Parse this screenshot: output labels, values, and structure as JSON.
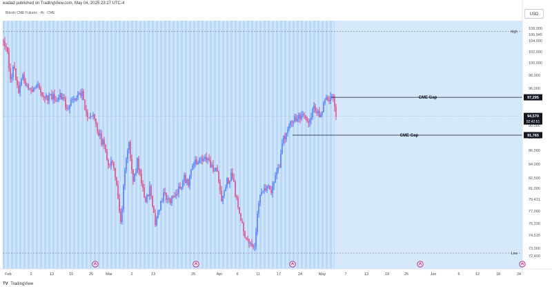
{
  "header": {
    "published_text": "wadad published on TradingView.com, May 04, 2025 23:27 UTC-4",
    "symbol_text": "Bitcoin CME Futures · 4h · CME"
  },
  "currency": "USD",
  "branding": {
    "logo": "TV",
    "name": "TradingView"
  },
  "colors": {
    "up": "#2962ff",
    "down": "#e91e63",
    "background_band": "#bbd8f7",
    "future_area": "#d6e8fb",
    "price_tag_bg": "#131722",
    "line": "#131722",
    "session_marker": "#a1187a"
  },
  "chart_data": {
    "type": "candlestick",
    "timeframe": "4h",
    "y_axis": {
      "ticks": [
        "108,000",
        "106,945",
        "104,000",
        "102,000",
        "100,000",
        "98,000",
        "96,000",
        "94,570",
        "02:42:51",
        "91,765",
        "90,000",
        "88,000",
        "86,000",
        "84,000",
        "82,500",
        "81,000",
        "79,431",
        "77,000",
        "76,330",
        "74,515",
        "73,000",
        "72,400"
      ],
      "ylim": [
        72200,
        108500
      ],
      "high_label": "High",
      "low_label": "Low",
      "high_value": 106945,
      "low_value": 74515
    },
    "x_axis": {
      "ticks": [
        "Feb",
        "2",
        "13",
        "19",
        "25",
        "Mar",
        "2",
        "13",
        "25",
        "Apr",
        "6",
        "11",
        "17",
        "24",
        "May",
        "7",
        "13",
        "19",
        "25",
        "Jun",
        "6",
        "12",
        "18",
        "24"
      ]
    },
    "price_labels": [
      {
        "value": "97,295",
        "price": 97295
      },
      {
        "value": "94,570",
        "price": 94570,
        "countdown": "02:42:51"
      },
      {
        "value": "91,765",
        "price": 91765
      }
    ],
    "annotations": [
      {
        "text": "CME Gap",
        "price": 97295
      },
      {
        "text": "CME Gap",
        "price": 91765
      }
    ],
    "path": [
      [
        0,
        105500
      ],
      [
        3,
        104800
      ],
      [
        6,
        100500
      ],
      [
        9,
        101500
      ],
      [
        12,
        98200
      ],
      [
        15,
        100000
      ],
      [
        20,
        98000
      ],
      [
        26,
        98800
      ],
      [
        30,
        97500
      ],
      [
        36,
        97200
      ],
      [
        42,
        97500
      ],
      [
        47,
        96000
      ],
      [
        52,
        96900
      ],
      [
        58,
        97800
      ],
      [
        61,
        95000
      ],
      [
        67,
        94500
      ],
      [
        70,
        92000
      ],
      [
        74,
        90000
      ],
      [
        77,
        87000
      ],
      [
        80,
        88200
      ],
      [
        83,
        84000
      ],
      [
        86,
        78800
      ],
      [
        89,
        86500
      ],
      [
        92,
        90800
      ],
      [
        95,
        84500
      ],
      [
        98,
        88000
      ],
      [
        101,
        85000
      ],
      [
        104,
        82200
      ],
      [
        107,
        84000
      ],
      [
        111,
        79000
      ],
      [
        114,
        81000
      ],
      [
        117,
        83500
      ],
      [
        122,
        82000
      ],
      [
        128,
        84000
      ],
      [
        132,
        85500
      ],
      [
        135,
        84500
      ],
      [
        138,
        87500
      ],
      [
        143,
        87800
      ],
      [
        147,
        89000
      ],
      [
        152,
        87000
      ],
      [
        156,
        86800
      ],
      [
        159,
        82000
      ],
      [
        162,
        84500
      ],
      [
        166,
        86000
      ],
      [
        168,
        84500
      ],
      [
        171,
        81000
      ],
      [
        174,
        79000
      ],
      [
        177,
        76500
      ],
      [
        180,
        75500
      ],
      [
        183,
        76000
      ],
      [
        186,
        82000
      ],
      [
        189,
        84000
      ],
      [
        192,
        84200
      ],
      [
        195,
        83500
      ],
      [
        198,
        86000
      ],
      [
        201,
        87000
      ],
      [
        204,
        91500
      ],
      [
        206,
        91800
      ],
      [
        209,
        93500
      ],
      [
        212,
        94200
      ],
      [
        218,
        94800
      ],
      [
        222,
        94000
      ],
      [
        226,
        95500
      ],
      [
        230,
        94500
      ],
      [
        234,
        96500
      ],
      [
        236,
        96900
      ],
      [
        238,
        97100
      ],
      [
        240,
        96800
      ],
      [
        242,
        94300
      ]
    ]
  }
}
